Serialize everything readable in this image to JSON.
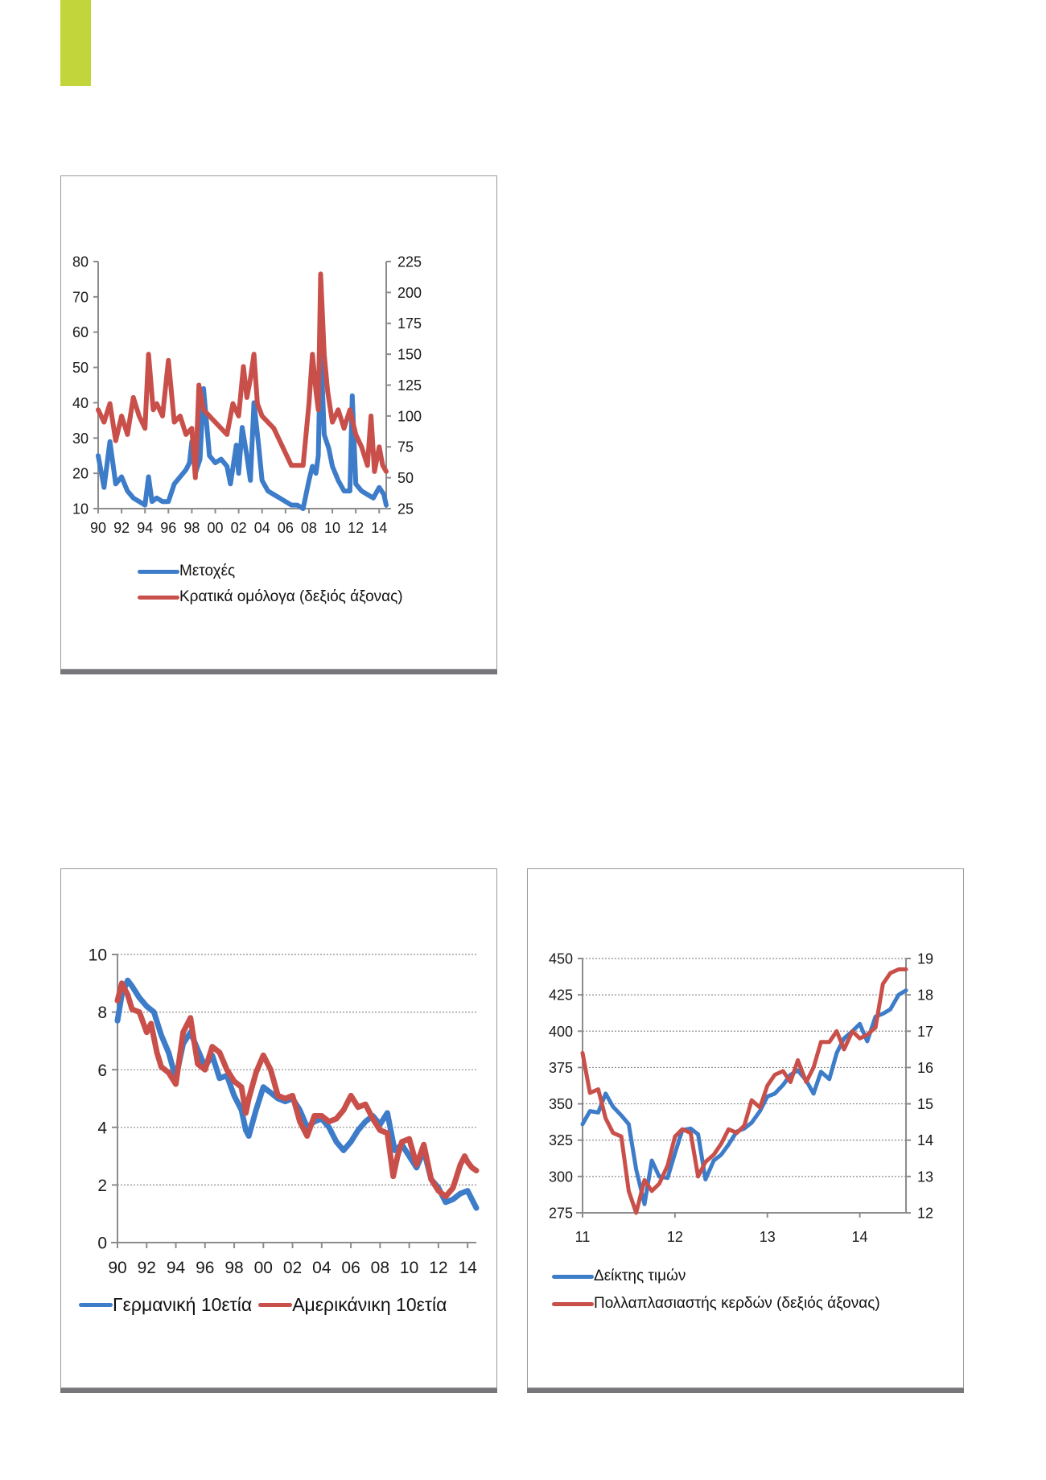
{
  "page": {
    "accent_color": "#c2d63b"
  },
  "colors": {
    "blue": "#3d7cc9",
    "red": "#c9504a",
    "axis": "#8c8c8c",
    "grid": "#8c8c8c",
    "frame_rule": "#77777b"
  },
  "chart_data": [
    {
      "type": "line",
      "title": "",
      "xlabel": "",
      "ylabel": "",
      "x_ticks": [
        "90",
        "92",
        "94",
        "96",
        "98",
        "00",
        "02",
        "04",
        "06",
        "08",
        "10",
        "12",
        "14"
      ],
      "y_left": {
        "ticks": [
          "10",
          "20",
          "30",
          "40",
          "50",
          "60",
          "70",
          "80"
        ],
        "range": [
          10,
          80
        ]
      },
      "y_right": {
        "ticks": [
          "25",
          "50",
          "75",
          "100",
          "125",
          "150",
          "175",
          "200",
          "225"
        ],
        "range": [
          25,
          225
        ]
      },
      "grid": false,
      "legend_position": "bottom-left",
      "x_range": [
        1990,
        2014.6
      ],
      "series": [
        {
          "name": "Μετοχές",
          "axis": "left",
          "color": "blue",
          "x": [
            1990,
            1990.5,
            1991,
            1991.5,
            1992,
            1992.5,
            1993,
            1993.5,
            1994,
            1994.3,
            1994.6,
            1995,
            1995.5,
            1996,
            1996.5,
            1997,
            1997.5,
            1997.8,
            1998,
            1998.3,
            1998.7,
            1999,
            1999.5,
            2000,
            2000.5,
            2001,
            2001.3,
            2001.8,
            2002,
            2002.3,
            2002.7,
            2003,
            2003.3,
            2003.7,
            2004,
            2004.5,
            2005,
            2005.5,
            2006,
            2006.5,
            2007,
            2007.5,
            2008,
            2008.3,
            2008.6,
            2008.8,
            2009,
            2009.3,
            2009.7,
            2010,
            2010.5,
            2011,
            2011.5,
            2011.7,
            2012,
            2012.5,
            2013,
            2013.5,
            2014,
            2014.4,
            2014.6
          ],
          "y": [
            25,
            16,
            29,
            17,
            19,
            15,
            13,
            12,
            11,
            19,
            12,
            13,
            12,
            12,
            17,
            19,
            21,
            23,
            29,
            20,
            24,
            44,
            25,
            23,
            24,
            22,
            17,
            28,
            20,
            33,
            25,
            18,
            40,
            28,
            18,
            15,
            14,
            13,
            12,
            11,
            11,
            10,
            18,
            22,
            20,
            25,
            58,
            31,
            27,
            22,
            18,
            15,
            15,
            42,
            17,
            15,
            14,
            13,
            16,
            14,
            11
          ]
        },
        {
          "name": "Κρατικά ομόλογα (δεξιός άξονας)",
          "axis": "right",
          "color": "red",
          "x": [
            1990,
            1990.5,
            1991,
            1991.5,
            1992,
            1992.5,
            1993,
            1993.5,
            1994,
            1994.3,
            1994.7,
            1995,
            1995.5,
            1996,
            1996.5,
            1997,
            1997.5,
            1998,
            1998.3,
            1998.6,
            1999,
            1999.5,
            2000,
            2000.5,
            2001,
            2001.5,
            2002,
            2002.4,
            2002.7,
            2003,
            2003.3,
            2003.6,
            2004,
            2004.5,
            2005,
            2005.5,
            2006,
            2006.5,
            2007,
            2007.5,
            2008,
            2008.3,
            2008.6,
            2008.8,
            2009,
            2009.3,
            2009.6,
            2010,
            2010.5,
            2011,
            2011.5,
            2012,
            2012.5,
            2013,
            2013.3,
            2013.6,
            2014,
            2014.3,
            2014.6
          ],
          "y": [
            105,
            95,
            110,
            80,
            100,
            85,
            115,
            100,
            90,
            150,
            105,
            110,
            100,
            145,
            95,
            100,
            85,
            90,
            50,
            125,
            105,
            100,
            95,
            90,
            85,
            110,
            100,
            140,
            115,
            130,
            150,
            110,
            100,
            95,
            90,
            80,
            70,
            60,
            60,
            60,
            110,
            150,
            120,
            105,
            215,
            150,
            120,
            95,
            105,
            90,
            105,
            85,
            75,
            60,
            100,
            55,
            75,
            60,
            55
          ]
        }
      ]
    },
    {
      "type": "line",
      "title": "",
      "xlabel": "",
      "ylabel": "",
      "x_ticks": [
        "90",
        "92",
        "94",
        "96",
        "98",
        "00",
        "02",
        "04",
        "06",
        "08",
        "10",
        "12",
        "14"
      ],
      "y_left": {
        "ticks": [
          "0",
          "2",
          "4",
          "6",
          "8",
          "10"
        ],
        "range": [
          0,
          10
        ]
      },
      "grid": true,
      "legend_position": "bottom",
      "x_range": [
        1990,
        2014.6
      ],
      "series": [
        {
          "name": "Γερμανική 10ετία",
          "axis": "left",
          "color": "blue",
          "x": [
            1990,
            1990.3,
            1990.7,
            1991,
            1991.5,
            1992,
            1992.5,
            1993,
            1993.5,
            1994,
            1994.5,
            1995,
            1995.5,
            1996,
            1996.5,
            1997,
            1997.5,
            1998,
            1998.5,
            1998.8,
            1999,
            1999.5,
            2000,
            2000.5,
            2001,
            2001.5,
            2002,
            2002.5,
            2003,
            2003.5,
            2004,
            2004.5,
            2005,
            2005.5,
            2006,
            2006.5,
            2007,
            2007.5,
            2008,
            2008.5,
            2009,
            2009.5,
            2010,
            2010.5,
            2011,
            2011.5,
            2012,
            2012.5,
            2013,
            2013.5,
            2014,
            2014.6
          ],
          "y": [
            7.7,
            8.6,
            9.1,
            8.9,
            8.5,
            8.2,
            8.0,
            7.2,
            6.6,
            5.7,
            6.9,
            7.3,
            6.7,
            6.1,
            6.5,
            5.7,
            5.8,
            5.1,
            4.6,
            3.9,
            3.7,
            4.6,
            5.4,
            5.2,
            5.0,
            4.9,
            5.0,
            4.6,
            4.0,
            4.2,
            4.3,
            4.0,
            3.5,
            3.2,
            3.5,
            3.9,
            4.2,
            4.4,
            4.1,
            4.5,
            3.2,
            3.4,
            3.0,
            2.6,
            3.2,
            2.2,
            1.9,
            1.4,
            1.5,
            1.7,
            1.8,
            1.2
          ]
        },
        {
          "name": "Αμερικάνικη 10ετία",
          "axis": "left",
          "color": "red",
          "x": [
            1990,
            1990.3,
            1990.7,
            1991,
            1991.5,
            1992,
            1992.3,
            1992.7,
            1993,
            1993.5,
            1994,
            1994.5,
            1995,
            1995.5,
            1996,
            1996.5,
            1997,
            1997.5,
            1998,
            1998.5,
            1998.8,
            1999,
            1999.5,
            2000,
            2000.5,
            2001,
            2001.5,
            2002,
            2002.5,
            2003,
            2003.5,
            2004,
            2004.5,
            2005,
            2005.5,
            2006,
            2006.5,
            2007,
            2007.5,
            2008,
            2008.5,
            2008.9,
            2009.2,
            2009.5,
            2010,
            2010.5,
            2011,
            2011.5,
            2012,
            2012.5,
            2013,
            2013.5,
            2013.8,
            2014,
            2014.3,
            2014.6
          ],
          "y": [
            8.4,
            9.0,
            8.6,
            8.1,
            8.0,
            7.3,
            7.6,
            6.6,
            6.1,
            5.9,
            5.5,
            7.3,
            7.8,
            6.2,
            6.0,
            6.8,
            6.6,
            6.0,
            5.6,
            5.4,
            4.5,
            5.0,
            5.9,
            6.5,
            6.0,
            5.1,
            5.0,
            5.1,
            4.2,
            3.7,
            4.4,
            4.4,
            4.2,
            4.3,
            4.6,
            5.1,
            4.7,
            4.8,
            4.3,
            3.9,
            3.8,
            2.3,
            3.0,
            3.5,
            3.6,
            2.7,
            3.4,
            2.2,
            1.8,
            1.6,
            1.9,
            2.7,
            3.0,
            2.8,
            2.6,
            2.5
          ]
        }
      ]
    },
    {
      "type": "line",
      "title": "",
      "xlabel": "",
      "ylabel": "",
      "x_ticks": [
        "11",
        "12",
        "13",
        "14"
      ],
      "y_left": {
        "ticks": [
          "275",
          "300",
          "325",
          "350",
          "375",
          "400",
          "425",
          "450"
        ],
        "range": [
          275,
          450
        ]
      },
      "y_right": {
        "ticks": [
          "12",
          "13",
          "14",
          "15",
          "16",
          "17",
          "18",
          "19"
        ],
        "range": [
          12,
          19
        ]
      },
      "grid": true,
      "legend_position": "bottom-left",
      "x_range": [
        2011,
        2014.5
      ],
      "series": [
        {
          "name": "Δείκτης τιμών",
          "axis": "left",
          "color": "blue",
          "x": [
            2011.0,
            2011.08,
            2011.17,
            2011.25,
            2011.33,
            2011.42,
            2011.5,
            2011.58,
            2011.67,
            2011.75,
            2011.83,
            2011.92,
            2012.0,
            2012.08,
            2012.17,
            2012.25,
            2012.33,
            2012.42,
            2012.5,
            2012.58,
            2012.67,
            2012.75,
            2012.83,
            2012.92,
            2013.0,
            2013.08,
            2013.17,
            2013.25,
            2013.33,
            2013.42,
            2013.5,
            2013.58,
            2013.67,
            2013.75,
            2013.83,
            2013.92,
            2014.0,
            2014.08,
            2014.17,
            2014.25,
            2014.33,
            2014.42,
            2014.5
          ],
          "y": [
            336,
            345,
            344,
            357,
            348,
            342,
            336,
            305,
            281,
            311,
            300,
            299,
            316,
            332,
            333,
            329,
            298,
            311,
            315,
            322,
            331,
            333,
            337,
            345,
            355,
            357,
            363,
            370,
            373,
            366,
            357,
            372,
            367,
            385,
            395,
            400,
            405,
            393,
            410,
            412,
            415,
            425,
            428
          ]
        },
        {
          "name": "Πολλαπλασιαστής κερδών (δεξιός άξονας)",
          "axis": "right",
          "color": "red",
          "x": [
            2011.0,
            2011.08,
            2011.17,
            2011.25,
            2011.33,
            2011.42,
            2011.5,
            2011.58,
            2011.67,
            2011.75,
            2011.83,
            2011.92,
            2012.0,
            2012.08,
            2012.17,
            2012.25,
            2012.33,
            2012.42,
            2012.5,
            2012.58,
            2012.67,
            2012.75,
            2012.83,
            2012.92,
            2013.0,
            2013.08,
            2013.17,
            2013.25,
            2013.33,
            2013.42,
            2013.5,
            2013.58,
            2013.67,
            2013.75,
            2013.83,
            2013.92,
            2014.0,
            2014.08,
            2014.17,
            2014.25,
            2014.33,
            2014.42,
            2014.5
          ],
          "y": [
            16.4,
            15.3,
            15.4,
            14.6,
            14.2,
            14.1,
            12.6,
            12.0,
            12.9,
            12.6,
            12.8,
            13.3,
            14.1,
            14.3,
            14.2,
            13.0,
            13.4,
            13.6,
            13.9,
            14.3,
            14.2,
            14.4,
            15.1,
            14.9,
            15.5,
            15.8,
            15.9,
            15.6,
            16.2,
            15.6,
            16.0,
            16.7,
            16.7,
            17.0,
            16.5,
            17.0,
            16.8,
            16.9,
            17.1,
            18.3,
            18.6,
            18.7,
            18.7
          ]
        }
      ]
    }
  ]
}
